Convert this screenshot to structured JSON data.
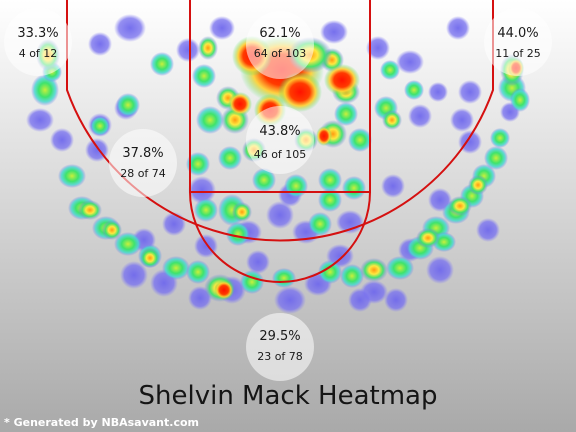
{
  "chart_data": {
    "type": "heatmap",
    "title": "Shelvin Mack Heatmap",
    "zones": [
      {
        "name": "left corner three",
        "pct": "33.3%",
        "made_attempts": "4 of 12",
        "made": 4,
        "attempts": 12
      },
      {
        "name": "restricted area",
        "pct": "62.1%",
        "made_attempts": "64 of 103",
        "made": 64,
        "attempts": 103
      },
      {
        "name": "right corner three",
        "pct": "44.0%",
        "made_attempts": "11 of 25",
        "made": 11,
        "attempts": 25
      },
      {
        "name": "mid-range",
        "pct": "37.8%",
        "made_attempts": "28 of 74",
        "made": 28,
        "attempts": 74
      },
      {
        "name": "paint non-restricted",
        "pct": "43.8%",
        "made_attempts": "46 of 105",
        "made": 46,
        "attempts": 105
      },
      {
        "name": "above the break three",
        "pct": "29.5%",
        "made_attempts": "23 of 78",
        "made": 23,
        "attempts": 78
      }
    ],
    "colors": {
      "low": "#7b70f0",
      "mid": "#3fd86a",
      "high": "#ffe040",
      "max": "#ff1a00",
      "court_lines": "#d01010"
    }
  },
  "footer": {
    "credit": "* Generated by NBAsavant.com"
  }
}
